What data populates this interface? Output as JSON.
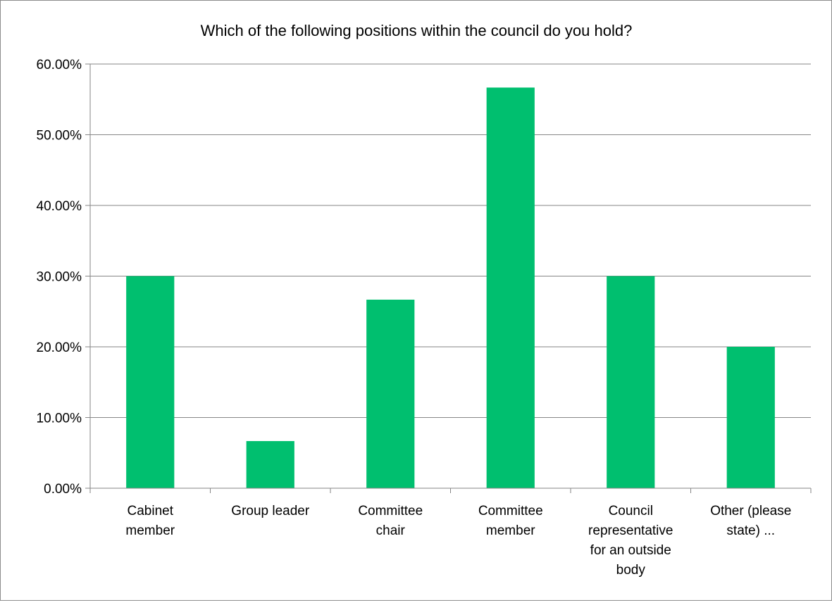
{
  "chart_data": {
    "type": "bar",
    "title": "Which of the following positions within the council do you hold?",
    "xlabel": "",
    "ylabel": "",
    "categories": [
      "Cabinet member",
      "Group leader",
      "Committee chair",
      "Committee member",
      "Council representative for an outside body",
      "Other (please state) ..."
    ],
    "category_label_lines": [
      [
        "Cabinet",
        "member"
      ],
      [
        "Group leader"
      ],
      [
        "Committee",
        "chair"
      ],
      [
        "Committee",
        "member"
      ],
      [
        "Council",
        "representative",
        "for an outside",
        "body"
      ],
      [
        "Other (please",
        "state) ..."
      ]
    ],
    "values": [
      30.0,
      6.67,
      26.67,
      56.67,
      30.0,
      20.0
    ],
    "ylim": [
      0,
      60
    ],
    "yticks": [
      0,
      10,
      20,
      30,
      40,
      50,
      60
    ],
    "ytick_labels": [
      "0.00%",
      "10.00%",
      "20.00%",
      "30.00%",
      "40.00%",
      "50.00%",
      "60.00%"
    ],
    "grid": true,
    "legend": "none",
    "bar_color": "#00bf6f",
    "grid_color": "#868686"
  }
}
